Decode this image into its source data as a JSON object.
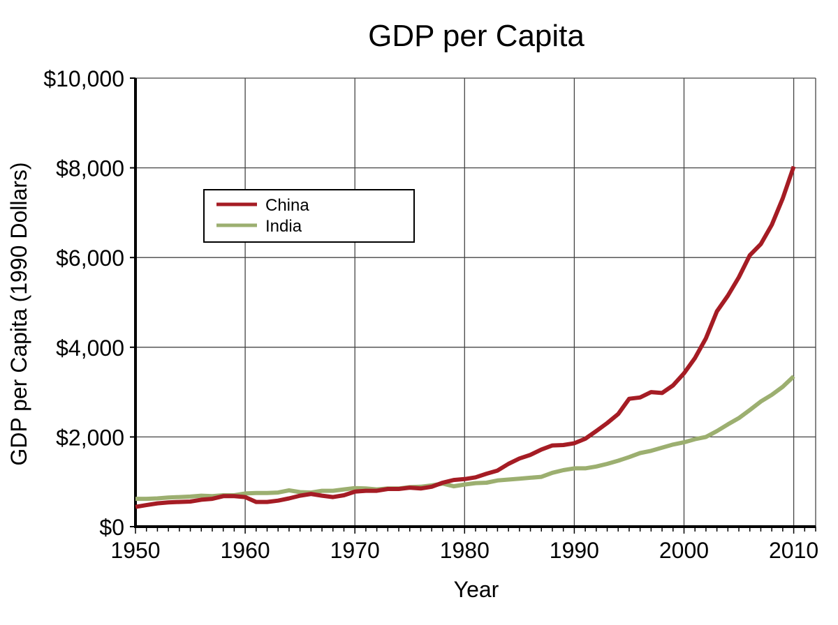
{
  "chart_data": {
    "type": "line",
    "title": "GDP per Capita",
    "xlabel": "Year",
    "ylabel": "GDP per Capita (1990 Dollars)",
    "xlim": [
      1950,
      2012
    ],
    "ylim": [
      0,
      10000
    ],
    "x_ticks": [
      "1950",
      "1960",
      "1970",
      "1980",
      "1990",
      "2000",
      "2010"
    ],
    "y_ticks": [
      "$0",
      "$2,000",
      "$4,000",
      "$6,000",
      "$8,000",
      "$10,000"
    ],
    "grid": true,
    "legend_position": "upper-left",
    "x": [
      1950,
      1951,
      1952,
      1953,
      1954,
      1955,
      1956,
      1957,
      1958,
      1959,
      1960,
      1961,
      1962,
      1963,
      1964,
      1965,
      1966,
      1967,
      1968,
      1969,
      1970,
      1971,
      1972,
      1973,
      1974,
      1975,
      1976,
      1977,
      1978,
      1979,
      1980,
      1981,
      1982,
      1983,
      1984,
      1985,
      1986,
      1987,
      1988,
      1989,
      1990,
      1991,
      1992,
      1993,
      1994,
      1995,
      1996,
      1997,
      1998,
      1999,
      2000,
      2001,
      2002,
      2003,
      2004,
      2005,
      2006,
      2007,
      2008,
      2009,
      2010
    ],
    "series": [
      {
        "name": "China",
        "color": "#a51c24",
        "values": [
          440,
          480,
          520,
          540,
          550,
          560,
          600,
          620,
          680,
          680,
          660,
          550,
          550,
          580,
          630,
          690,
          730,
          690,
          660,
          700,
          780,
          800,
          800,
          840,
          840,
          870,
          850,
          890,
          980,
          1040,
          1060,
          1100,
          1180,
          1250,
          1400,
          1520,
          1600,
          1720,
          1810,
          1820,
          1860,
          1960,
          2130,
          2310,
          2510,
          2850,
          2880,
          3000,
          2980,
          3150,
          3420,
          3760,
          4200,
          4800,
          5150,
          5560,
          6050,
          6300,
          6730,
          7320,
          8030
        ]
      },
      {
        "name": "India",
        "color": "#9caf70",
        "values": [
          620,
          620,
          630,
          650,
          660,
          670,
          690,
          680,
          700,
          700,
          740,
          750,
          750,
          760,
          810,
          770,
          760,
          800,
          800,
          830,
          860,
          850,
          830,
          850,
          850,
          880,
          890,
          920,
          960,
          900,
          940,
          970,
          980,
          1030,
          1050,
          1070,
          1090,
          1110,
          1200,
          1260,
          1300,
          1300,
          1340,
          1400,
          1470,
          1550,
          1640,
          1690,
          1760,
          1830,
          1880,
          1950,
          2000,
          2130,
          2280,
          2420,
          2600,
          2790,
          2940,
          3120,
          3350
        ]
      }
    ]
  }
}
